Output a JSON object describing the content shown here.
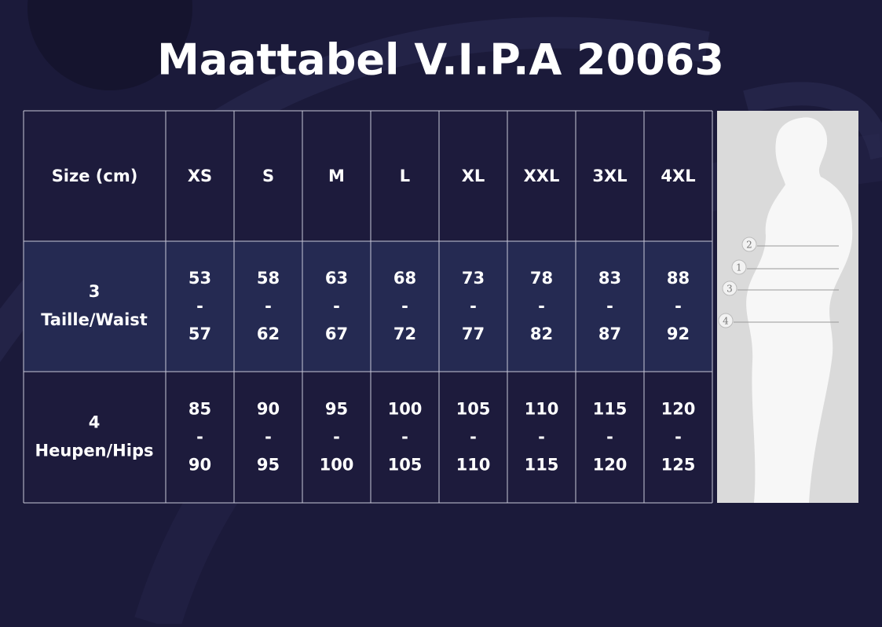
{
  "title": "Maattabel V.I.P.A 20063",
  "table": {
    "header": [
      "Size (cm)",
      "XS",
      "S",
      "M",
      "L",
      "XL",
      "XXL",
      "3XL",
      "4XL"
    ],
    "rows": [
      {
        "label": [
          "3",
          "Taille/Waist"
        ],
        "cells": [
          [
            "53",
            "-",
            "57"
          ],
          [
            "58",
            "-",
            "62"
          ],
          [
            "63",
            "-",
            "67"
          ],
          [
            "68",
            "-",
            "72"
          ],
          [
            "73",
            "-",
            "77"
          ],
          [
            "78",
            "-",
            "82"
          ],
          [
            "83",
            "-",
            "87"
          ],
          [
            "88",
            "-",
            "92"
          ]
        ]
      },
      {
        "label": [
          "4",
          "Heupen/Hips"
        ],
        "cells": [
          [
            "85",
            "-",
            "90"
          ],
          [
            "90",
            "-",
            "95"
          ],
          [
            "95",
            "-",
            "100"
          ],
          [
            "100",
            "-",
            "105"
          ],
          [
            "105",
            "-",
            "110"
          ],
          [
            "110",
            "-",
            "115"
          ],
          [
            "115",
            "-",
            "120"
          ],
          [
            "120",
            "-",
            "125"
          ]
        ]
      }
    ]
  },
  "figure": {
    "markers": [
      "2",
      "1",
      "3",
      "4"
    ]
  }
}
